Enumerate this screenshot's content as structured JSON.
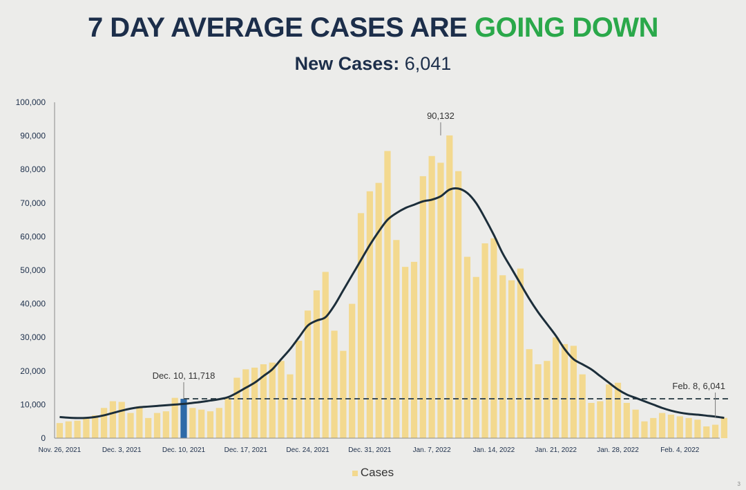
{
  "header": {
    "title_part1": "7 DAY AVERAGE CASES ARE",
    "title_part2": "GOING DOWN",
    "title_part2_color": "#2aa84a",
    "subtitle_label": "New Cases:",
    "subtitle_value": "6,041"
  },
  "page_number": "3",
  "chart_data": {
    "type": "bar",
    "title": "7 DAY AVERAGE CASES ARE GOING DOWN",
    "subtitle": "New Cases: 6,041",
    "x_tick_labels": [
      "Nov. 26, 2021",
      "Dec. 3, 2021",
      "Dec. 10, 2021",
      "Dec. 17, 2021",
      "Dec. 24, 2021",
      "Dec. 31, 2021",
      "Jan. 7, 2022",
      "Jan. 14, 2022",
      "Jan. 21, 2022",
      "Jan. 28, 2022",
      "Feb. 4, 2022"
    ],
    "y_tick_labels": [
      "0",
      "10,000",
      "20,000",
      "30,000",
      "40,000",
      "50,000",
      "60,000",
      "70,000",
      "80,000",
      "90,000",
      "100,000"
    ],
    "ylim": [
      0,
      100000
    ],
    "grid": false,
    "start_date": "2021-11-26",
    "end_date": "2022-02-08",
    "series": [
      {
        "name": "Cases",
        "type": "bar",
        "color": "#f3d98f",
        "values": [
          4500,
          5000,
          5200,
          6000,
          6800,
          9000,
          11000,
          10800,
          7500,
          9500,
          6000,
          7500,
          8000,
          12000,
          11718,
          9000,
          8500,
          8000,
          9000,
          12000,
          18000,
          20500,
          21000,
          22000,
          22500,
          23000,
          19000,
          29000,
          38000,
          44000,
          49500,
          32000,
          26000,
          40000,
          67000,
          73500,
          76000,
          85500,
          59000,
          51000,
          52500,
          78000,
          84000,
          82000,
          90132,
          79500,
          54000,
          48000,
          58000,
          59500,
          48500,
          47000,
          50500,
          26500,
          22000,
          23000,
          30000,
          28000,
          27500,
          19000,
          10500,
          11000,
          16000,
          16500,
          10500,
          8500,
          5000,
          6000,
          7500,
          7000,
          6500,
          6000,
          5500,
          3500,
          4000,
          6041
        ]
      },
      {
        "name": "7-day average",
        "type": "line",
        "color": "#1c2e3a",
        "values": [
          6300,
          6100,
          6000,
          6050,
          6300,
          6800,
          7500,
          8200,
          8800,
          9200,
          9400,
          9600,
          9800,
          10000,
          10200,
          10500,
          10800,
          11200,
          11600,
          12200,
          13500,
          15000,
          16500,
          18500,
          20500,
          23500,
          26500,
          30000,
          33500,
          35000,
          36000,
          39500,
          44000,
          48500,
          53000,
          57500,
          61500,
          65000,
          67000,
          68500,
          69500,
          70500,
          71000,
          72000,
          74000,
          74300,
          73000,
          70000,
          65500,
          60500,
          55000,
          50500,
          46000,
          41500,
          37500,
          34000,
          30500,
          26500,
          23500,
          22000,
          20500,
          18500,
          16500,
          14500,
          13000,
          12000,
          11000,
          10000,
          9000,
          8200,
          7600,
          7200,
          7000,
          6700,
          6400,
          6041
        ]
      }
    ],
    "reference_line": {
      "value": 11718,
      "style": "dashed",
      "color": "#3a4a52"
    },
    "highlighted_bar": {
      "date": "2021-12-10",
      "value": 11718,
      "color": "#2d6aa8"
    },
    "annotations": [
      {
        "text": "Dec. 10, 11,718",
        "date": "2021-12-10",
        "value": 11718
      },
      {
        "text": "90,132",
        "date": "2022-01-08",
        "value": 90132
      },
      {
        "text": "Feb. 8, 6,041",
        "date": "2022-02-08",
        "value": 6041
      }
    ],
    "legend": {
      "position": "bottom",
      "entries": [
        "Cases"
      ]
    }
  }
}
